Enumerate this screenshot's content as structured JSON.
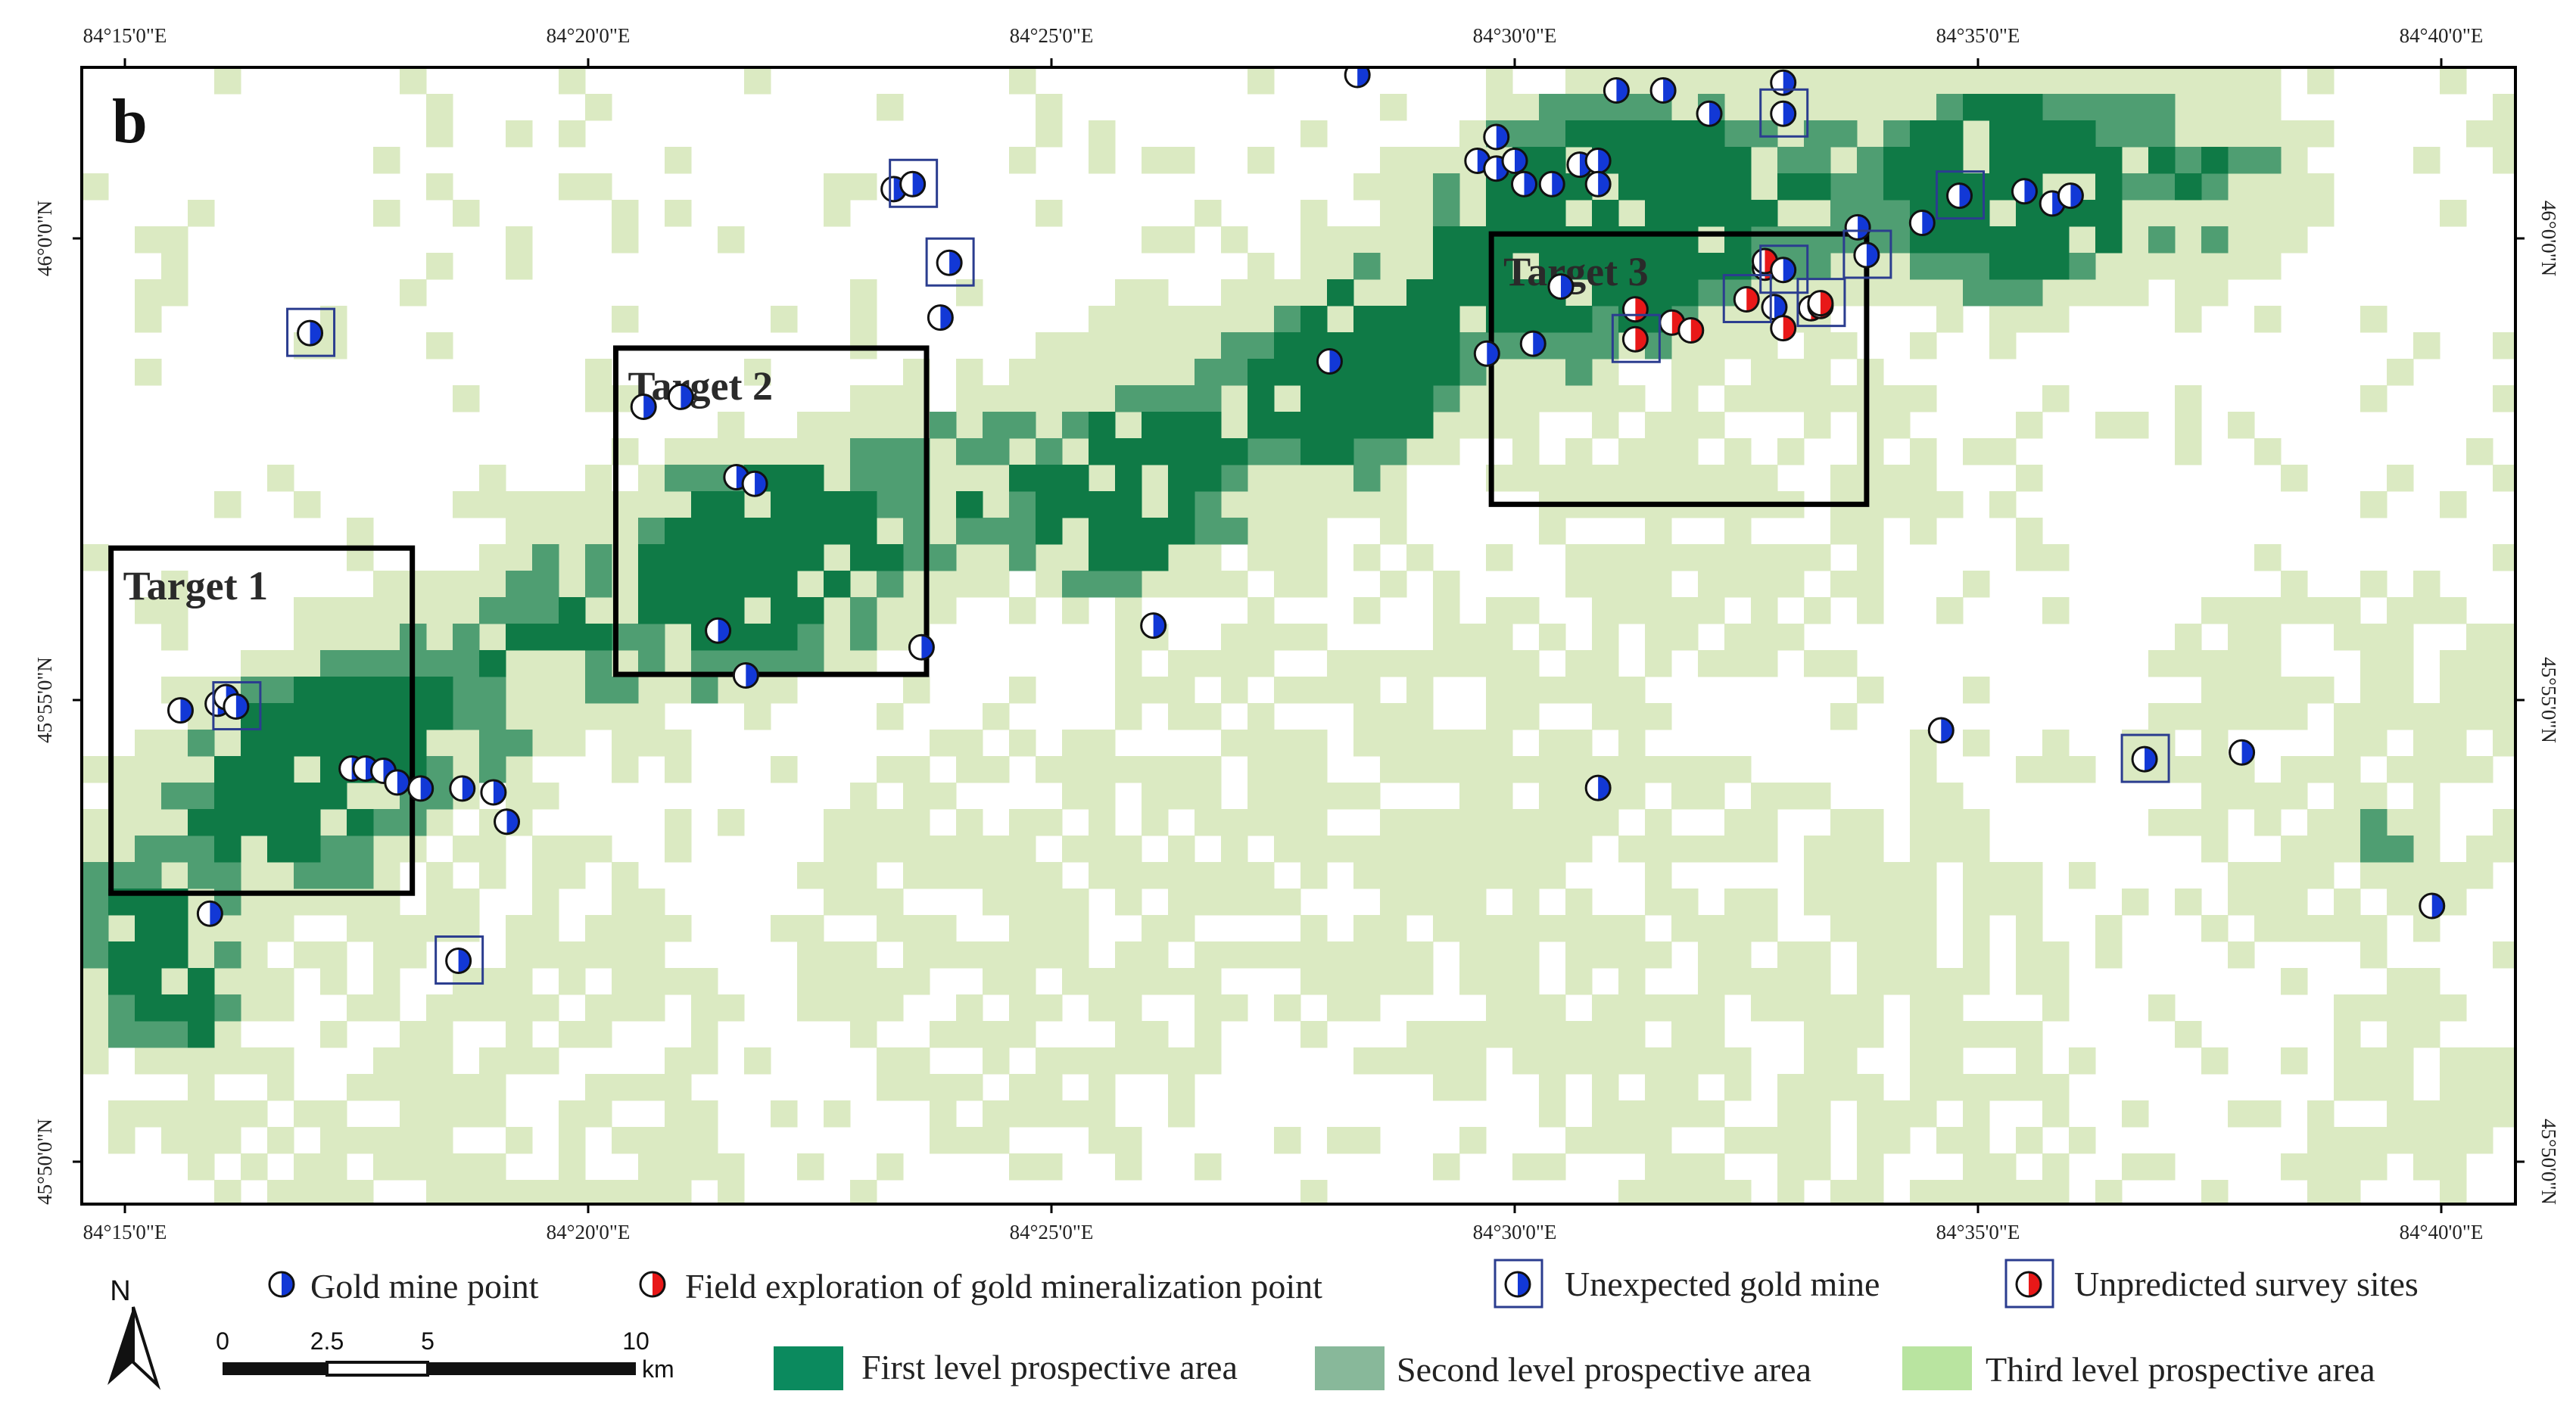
{
  "panel_letter": "b",
  "colors": {
    "first_level": "#0f7a46",
    "first_level_legend": "#0b8a5e",
    "second_level": "#4f9e72",
    "second_level_legend": "#88b89a",
    "third_level": "#dbeac2",
    "third_level_legend": "#b9e4a0",
    "gold_blue": "#1238d6",
    "survey_red": "#e81818",
    "unexpected_box": "#2b3d8f",
    "target_box": "#000000"
  },
  "axes": {
    "top_ticks": [
      "84°15'0\"E",
      "84°20'0\"E",
      "84°25'0\"E",
      "84°30'0\"E",
      "84°35'0\"E",
      "84°40'0\"E"
    ],
    "bottom_ticks": [
      "84°15'0\"E",
      "84°20'0\"E",
      "84°25'0\"E",
      "84°30'0\"E",
      "84°35'0\"E",
      "84°40'0\"E"
    ],
    "left_ticks": [
      "46°0'0\"N",
      "45°55'0\"N",
      "45°50'0\"N"
    ],
    "right_ticks": [
      "46°0'0\"N",
      "45°55'0\"N",
      "45°50'0\"N"
    ]
  },
  "targets": [
    {
      "label": "Target 1",
      "lon_min": 84.2475,
      "lon_max": 84.3017,
      "lat_min": 45.8818,
      "lat_max": 45.9441
    },
    {
      "label": "Target 2",
      "lon_min": 84.3383,
      "lon_max": 84.3942,
      "lat_min": 45.9213,
      "lat_max": 45.9802
    },
    {
      "label": "Target 3",
      "lon_min": 84.4958,
      "lon_max": 84.5633,
      "lat_min": 45.952,
      "lat_max": 46.0008
    }
  ],
  "points": {
    "gold_mine": [
      [
        84.26,
        45.9148
      ],
      [
        84.2667,
        45.916
      ],
      [
        84.2682,
        45.9172
      ],
      [
        84.2908,
        45.9043
      ],
      [
        84.2933,
        45.9043
      ],
      [
        84.2965,
        45.9039
      ],
      [
        84.299,
        45.9018
      ],
      [
        84.3032,
        45.9007
      ],
      [
        84.3107,
        45.9007
      ],
      [
        84.3163,
        45.9
      ],
      [
        84.3187,
        45.8947
      ],
      [
        84.2653,
        45.8781
      ],
      [
        84.3433,
        45.9696
      ],
      [
        84.35,
        45.9714
      ],
      [
        84.36,
        45.9569
      ],
      [
        84.3633,
        45.9557
      ],
      [
        84.3567,
        45.9292
      ],
      [
        84.3617,
        45.9211
      ],
      [
        84.3933,
        45.9262
      ],
      [
        84.3883,
        46.0089
      ],
      [
        84.3967,
        45.9857
      ],
      [
        84.435,
        45.9301
      ],
      [
        84.4667,
        45.9778
      ],
      [
        84.4717,
        46.0295
      ],
      [
        84.4933,
        46.014
      ],
      [
        84.4967,
        46.0183
      ],
      [
        84.4967,
        46.0126
      ],
      [
        84.5,
        46.014
      ],
      [
        84.5017,
        46.0098
      ],
      [
        84.5067,
        46.0098
      ],
      [
        84.5117,
        46.0133
      ],
      [
        84.515,
        46.014
      ],
      [
        84.515,
        46.0098
      ],
      [
        84.495,
        45.9792
      ],
      [
        84.5033,
        45.981
      ],
      [
        84.5083,
        45.9913
      ],
      [
        84.5183,
        46.0267
      ],
      [
        84.5267,
        46.0267
      ],
      [
        84.535,
        46.0225
      ],
      [
        84.5483,
        46.0281
      ],
      [
        84.5467,
        45.9876
      ],
      [
        84.5617,
        46.002
      ],
      [
        84.5733,
        46.0028
      ],
      [
        84.5917,
        46.0085
      ],
      [
        84.5967,
        46.0063
      ],
      [
        84.6,
        46.0077
      ],
      [
        84.5767,
        45.9112
      ],
      [
        84.515,
        45.9008
      ],
      [
        84.6308,
        45.9072
      ],
      [
        84.665,
        45.8795
      ]
    ],
    "field_exploration": [
      [
        84.545,
        45.9947
      ],
      [
        84.545,
        45.9959
      ],
      [
        84.5283,
        45.9848
      ],
      [
        84.5317,
        45.9834
      ],
      [
        84.5533,
        45.9874
      ],
      [
        84.555,
        45.9878
      ],
      [
        84.5483,
        45.9838
      ],
      [
        84.5217,
        45.9872
      ]
    ],
    "unexpected_mine": [
      [
        84.27,
        45.9155
      ],
      [
        84.2833,
        45.9829
      ],
      [
        84.31,
        45.8696
      ],
      [
        84.3917,
        46.0098
      ],
      [
        84.3983,
        45.9956
      ],
      [
        84.5483,
        46.0225
      ],
      [
        84.5483,
        45.9943
      ],
      [
        84.5633,
        45.997
      ],
      [
        84.58,
        46.0077
      ],
      [
        84.6133,
        45.906
      ]
    ],
    "unpredicted_survey": [
      [
        84.5417,
        45.989
      ],
      [
        84.5217,
        45.9818
      ],
      [
        84.555,
        45.9883
      ]
    ]
  },
  "legend": {
    "gold_mine": "Gold mine point",
    "field_exploration": "Field exploration of gold mineralization point",
    "unexpected_mine": "Unexpected gold mine",
    "unpredicted_survey": "Unpredicted survey sites",
    "first_level": "First level prospective area",
    "second_level": "Second level prospective area",
    "third_level": "Third level prospective area"
  },
  "north_arrow": {
    "label": "N"
  },
  "scale_bar": {
    "labels": [
      "0",
      "2.5",
      "5",
      "10"
    ],
    "unit": "km"
  }
}
